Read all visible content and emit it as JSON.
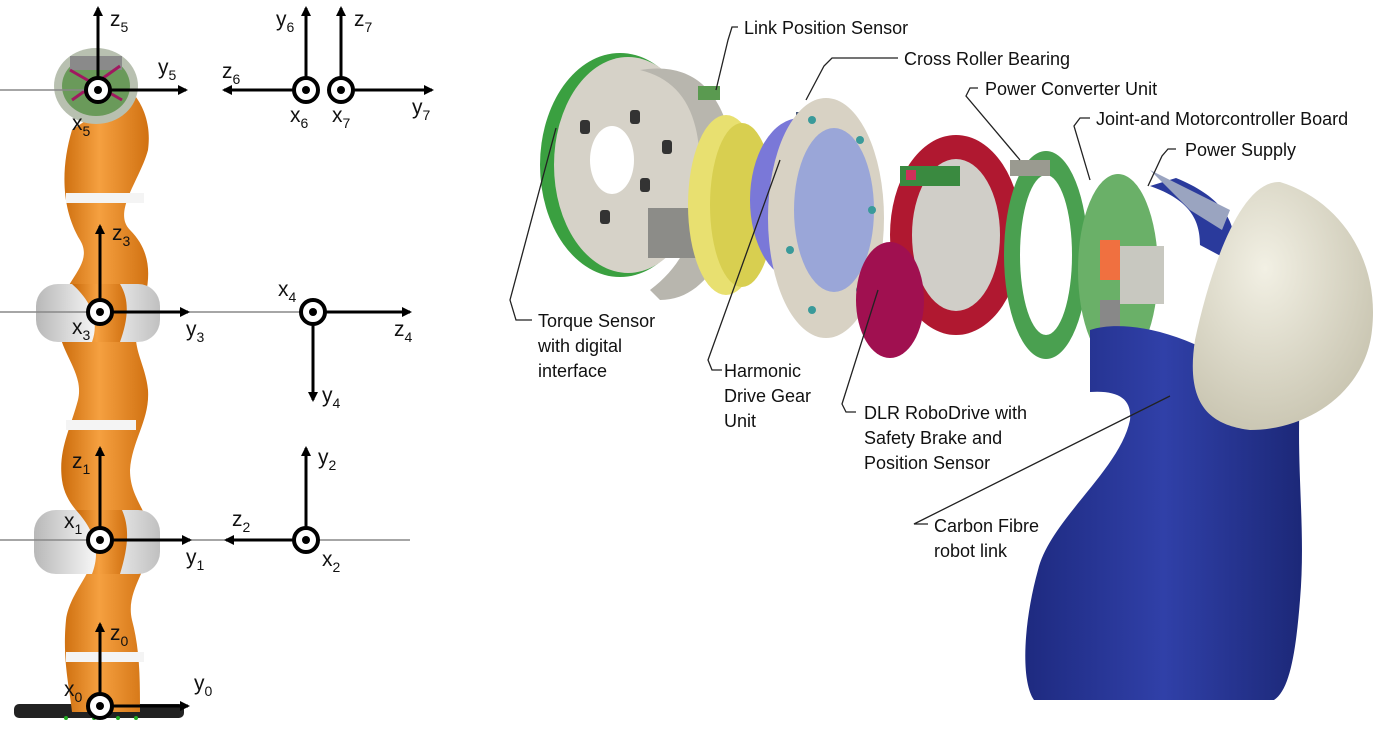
{
  "kinematic_frames": {
    "frame5": {
      "z": "z",
      "z_sub": "5",
      "y": "y",
      "y_sub": "5",
      "x": "x",
      "x_sub": "5"
    },
    "frame6": {
      "y": "y",
      "y_sub": "6",
      "z": "z",
      "z_sub": "6",
      "x": "x",
      "x_sub": "6"
    },
    "frame7": {
      "z": "z",
      "z_sub": "7",
      "y": "y",
      "y_sub": "7",
      "x": "x",
      "x_sub": "7"
    },
    "frame3": {
      "z": "z",
      "z_sub": "3",
      "y": "y",
      "y_sub": "3",
      "x": "x",
      "x_sub": "3"
    },
    "frame4": {
      "x": "x",
      "x_sub": "4",
      "z": "z",
      "z_sub": "4",
      "y": "y",
      "y_sub": "4"
    },
    "frame1": {
      "z": "z",
      "z_sub": "1",
      "y": "y",
      "y_sub": "1",
      "x": "x",
      "x_sub": "1"
    },
    "frame2": {
      "y": "y",
      "y_sub": "2",
      "z": "z",
      "z_sub": "2",
      "x": "x",
      "x_sub": "2"
    },
    "frame0": {
      "z": "z",
      "z_sub": "0",
      "y": "y",
      "y_sub": "0",
      "x": "x",
      "x_sub": "0"
    }
  },
  "callouts": {
    "link_position_sensor": "Link Position Sensor",
    "cross_roller_bearing": "Cross Roller Bearing",
    "power_converter_unit": "Power Converter Unit",
    "joint_motorcontroller_board": "Joint-and Motorcontroller Board",
    "power_supply": "Power Supply",
    "torque_sensor": [
      "Torque Sensor",
      "with digital",
      "interface"
    ],
    "harmonic_drive": [
      "Harmonic",
      "Drive Gear",
      "Unit"
    ],
    "robodrive": [
      "DLR RoboDrive with",
      "Safety Brake and",
      "Position Sensor"
    ],
    "carbon_fibre": [
      "Carbon Fibre",
      "robot link"
    ]
  },
  "colors": {
    "robot_orange": "#f08a1a",
    "link_blue": "#2a3a9c",
    "motor_red": "#b01830",
    "board_green": "#4aa050",
    "bearing_blue": "#7a78d8",
    "harmonic_yellow": "#e8e070",
    "housing_gray": "#c8c6c0"
  }
}
